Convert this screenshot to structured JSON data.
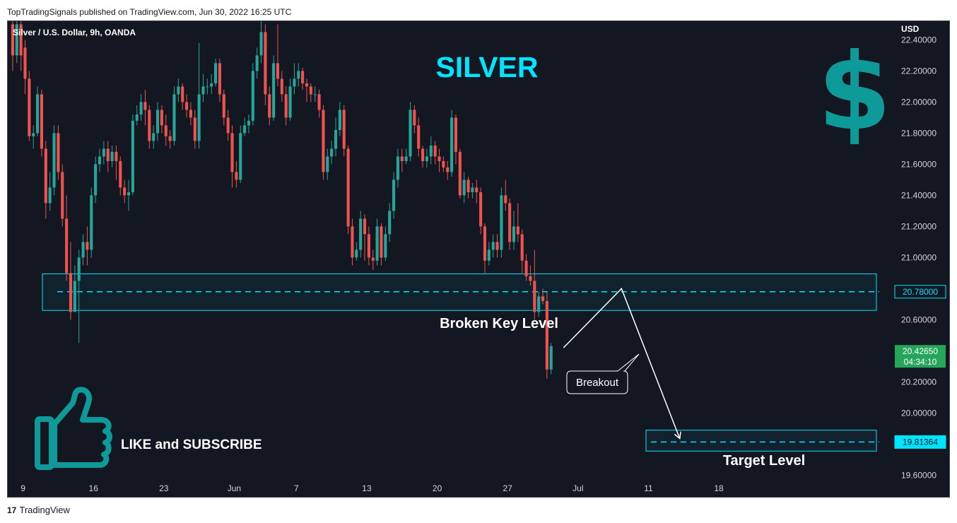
{
  "header": {
    "publish_text": "TopTradingSignals published on TradingView.com, Jun 30, 2022 16:25 UTC"
  },
  "footer": {
    "logo_text": "TradingView",
    "logo_icon": "tradingview-logo-icon"
  },
  "colors": {
    "background": "#131722",
    "up": "#26a69a",
    "down": "#ef5350",
    "accent": "#00e5ff",
    "icon": "#0f9a9a",
    "last_price_bg": "#26a65b"
  },
  "chart_data": {
    "type": "candlestick",
    "symbol_label": "Silver / U.S. Dollar, 9h, OANDA",
    "title": "SILVER",
    "currency_label": "USD",
    "y_ticks": [
      "22.40000",
      "22.20000",
      "22.00000",
      "21.80000",
      "21.60000",
      "21.40000",
      "21.20000",
      "21.00000",
      "20.60000",
      "20.20000",
      "20.00000",
      "19.60000"
    ],
    "ylim": [
      19.52,
      22.52
    ],
    "x_ticks": [
      {
        "label": "9",
        "bar": 2.5
      },
      {
        "label": "16",
        "bar": 19.5
      },
      {
        "label": "23",
        "bar": 36.5
      },
      {
        "label": "Jun",
        "bar": 53.5
      },
      {
        "label": "7",
        "bar": 68.5
      },
      {
        "label": "13",
        "bar": 85.5
      },
      {
        "label": "20",
        "bar": 102.5
      },
      {
        "label": "27",
        "bar": 119.5
      },
      {
        "label": "Jul",
        "bar": 136.5
      },
      {
        "label": "11",
        "bar": 153.5
      },
      {
        "label": "18",
        "bar": 170.5
      }
    ],
    "total_slots": 181,
    "candles": [
      [
        22.5,
        22.3,
        22.55,
        22.2
      ],
      [
        22.3,
        22.5,
        22.55,
        22.25
      ],
      [
        22.5,
        22.3,
        22.52,
        22.2
      ],
      [
        22.35,
        22.15,
        22.4,
        22.05
      ],
      [
        22.15,
        21.78,
        22.2,
        21.75
      ],
      [
        21.78,
        21.8,
        21.85,
        21.7
      ],
      [
        21.8,
        22.05,
        22.1,
        21.78
      ],
      [
        22.05,
        21.7,
        22.08,
        21.65
      ],
      [
        21.7,
        21.35,
        21.75,
        21.25
      ],
      [
        21.35,
        21.45,
        21.55,
        21.3
      ],
      [
        21.45,
        21.8,
        21.85,
        21.4
      ],
      [
        21.8,
        21.55,
        21.85,
        21.5
      ],
      [
        21.55,
        21.25,
        21.6,
        21.2
      ],
      [
        21.25,
        20.9,
        21.4,
        20.85
      ],
      [
        20.9,
        20.65,
        21.1,
        20.6
      ],
      [
        20.65,
        20.85,
        20.95,
        20.65
      ],
      [
        20.85,
        21.0,
        21.05,
        20.45
      ],
      [
        21.0,
        21.1,
        21.15,
        20.95
      ],
      [
        21.1,
        21.05,
        21.2,
        20.95
      ],
      [
        21.05,
        21.4,
        21.45,
        21.0
      ],
      [
        21.4,
        21.6,
        21.65,
        21.35
      ],
      [
        21.6,
        21.65,
        21.7,
        21.55
      ],
      [
        21.65,
        21.7,
        21.75,
        21.6
      ],
      [
        21.7,
        21.62,
        21.75,
        21.55
      ],
      [
        21.62,
        21.68,
        21.72,
        21.58
      ],
      [
        21.68,
        21.62,
        21.72,
        21.5
      ],
      [
        21.62,
        21.45,
        21.65,
        21.4
      ],
      [
        21.45,
        21.4,
        21.5,
        21.35
      ],
      [
        21.4,
        21.42,
        21.5,
        21.3
      ],
      [
        21.42,
        21.88,
        21.92,
        21.4
      ],
      [
        21.88,
        21.92,
        21.98,
        21.85
      ],
      [
        21.92,
        22.0,
        22.05,
        21.88
      ],
      [
        22.0,
        21.95,
        22.08,
        21.85
      ],
      [
        21.95,
        21.75,
        21.98,
        21.7
      ],
      [
        21.75,
        21.8,
        21.85,
        21.7
      ],
      [
        21.8,
        21.95,
        22.0,
        21.75
      ],
      [
        21.95,
        21.85,
        21.98,
        21.8
      ],
      [
        21.85,
        21.78,
        21.92,
        21.72
      ],
      [
        21.78,
        21.75,
        21.82,
        21.7
      ],
      [
        21.75,
        22.05,
        22.1,
        21.72
      ],
      [
        22.05,
        22.1,
        22.15,
        22.0
      ],
      [
        22.1,
        22.0,
        22.12,
        21.95
      ],
      [
        22.0,
        21.95,
        22.05,
        21.9
      ],
      [
        21.95,
        21.9,
        22.0,
        21.85
      ],
      [
        21.9,
        21.75,
        21.95,
        21.7
      ],
      [
        21.75,
        22.05,
        22.38,
        21.7
      ],
      [
        22.05,
        22.1,
        22.18,
        22.0
      ],
      [
        22.1,
        22.1,
        22.15,
        22.05
      ],
      [
        22.1,
        22.12,
        22.18,
        22.05
      ],
      [
        22.12,
        22.25,
        22.28,
        22.1
      ],
      [
        22.25,
        22.05,
        22.28,
        22.0
      ],
      [
        22.05,
        21.9,
        22.08,
        21.85
      ],
      [
        21.9,
        21.8,
        21.95,
        21.75
      ],
      [
        21.8,
        21.55,
        21.85,
        21.45
      ],
      [
        21.55,
        21.5,
        21.62,
        21.45
      ],
      [
        21.5,
        21.8,
        21.85,
        21.48
      ],
      [
        21.8,
        21.85,
        21.9,
        21.78
      ],
      [
        21.85,
        21.88,
        21.92,
        21.8
      ],
      [
        21.88,
        22.2,
        22.25,
        21.85
      ],
      [
        22.2,
        22.3,
        22.35,
        22.15
      ],
      [
        22.3,
        22.45,
        22.55,
        22.25
      ],
      [
        22.45,
        22.05,
        22.5,
        21.98
      ],
      [
        22.05,
        21.9,
        22.1,
        21.85
      ],
      [
        21.9,
        22.25,
        22.3,
        21.88
      ],
      [
        22.25,
        22.15,
        22.5,
        22.1
      ],
      [
        22.15,
        22.05,
        22.2,
        22.0
      ],
      [
        22.05,
        21.9,
        22.1,
        21.85
      ],
      [
        21.9,
        22.1,
        22.15,
        21.88
      ],
      [
        22.1,
        22.15,
        22.25,
        22.05
      ],
      [
        22.15,
        22.2,
        22.25,
        22.1
      ],
      [
        22.2,
        22.12,
        22.22,
        22.08
      ],
      [
        22.12,
        22.1,
        22.15,
        22.0
      ],
      [
        22.1,
        22.05,
        22.12,
        22.0
      ],
      [
        22.05,
        22.05,
        22.1,
        22.0
      ],
      [
        22.05,
        21.95,
        22.08,
        21.9
      ],
      [
        21.95,
        21.55,
        21.98,
        21.5
      ],
      [
        21.55,
        21.65,
        21.7,
        21.5
      ],
      [
        21.65,
        21.7,
        21.75,
        21.6
      ],
      [
        21.7,
        21.82,
        21.9,
        21.65
      ],
      [
        21.82,
        21.95,
        22.0,
        21.78
      ],
      [
        21.95,
        21.7,
        21.98,
        21.65
      ],
      [
        21.7,
        21.2,
        21.72,
        21.15
      ],
      [
        21.2,
        21.0,
        21.25,
        20.95
      ],
      [
        21.0,
        21.05,
        21.1,
        20.98
      ],
      [
        21.05,
        21.25,
        21.3,
        21.0
      ],
      [
        21.25,
        21.15,
        21.28,
        20.98
      ],
      [
        21.15,
        21.0,
        21.2,
        20.95
      ],
      [
        21.0,
        20.98,
        21.05,
        20.92
      ],
      [
        20.98,
        21.2,
        21.25,
        20.95
      ],
      [
        21.2,
        21.0,
        21.22,
        20.95
      ],
      [
        21.0,
        21.15,
        21.2,
        20.98
      ],
      [
        21.15,
        21.3,
        21.35,
        21.1
      ],
      [
        21.3,
        21.5,
        21.55,
        21.25
      ],
      [
        21.5,
        21.65,
        21.7,
        21.45
      ],
      [
        21.65,
        21.62,
        21.7,
        21.55
      ],
      [
        21.62,
        21.65,
        21.7,
        21.6
      ],
      [
        21.65,
        21.95,
        22.0,
        21.62
      ],
      [
        21.95,
        21.85,
        21.98,
        21.8
      ],
      [
        21.85,
        21.7,
        21.9,
        21.65
      ],
      [
        21.7,
        21.62,
        21.72,
        21.58
      ],
      [
        21.62,
        21.65,
        21.7,
        21.58
      ],
      [
        21.65,
        21.72,
        21.78,
        21.6
      ],
      [
        21.72,
        21.65,
        21.75,
        21.6
      ],
      [
        21.65,
        21.62,
        21.7,
        21.55
      ],
      [
        21.62,
        21.58,
        21.65,
        21.55
      ],
      [
        21.58,
        21.55,
        21.62,
        21.5
      ],
      [
        21.55,
        21.9,
        21.95,
        21.52
      ],
      [
        21.9,
        21.68,
        21.92,
        21.6
      ],
      [
        21.68,
        21.4,
        21.7,
        21.38
      ],
      [
        21.4,
        21.5,
        21.55,
        21.35
      ],
      [
        21.5,
        21.42,
        21.52,
        21.38
      ],
      [
        21.42,
        21.45,
        21.48,
        21.38
      ],
      [
        21.45,
        21.42,
        21.5,
        21.35
      ],
      [
        21.42,
        21.2,
        21.45,
        21.15
      ],
      [
        21.2,
        20.98,
        21.22,
        20.9
      ],
      [
        20.98,
        21.05,
        21.1,
        20.95
      ],
      [
        21.05,
        21.1,
        21.15,
        21.0
      ],
      [
        21.1,
        21.05,
        21.15,
        21.0
      ],
      [
        21.05,
        21.4,
        21.45,
        21.0
      ],
      [
        21.4,
        21.35,
        21.5,
        21.3
      ],
      [
        21.35,
        21.1,
        21.38,
        21.05
      ],
      [
        21.1,
        21.2,
        21.3,
        21.05
      ],
      [
        21.2,
        21.15,
        21.35,
        21.1
      ],
      [
        21.15,
        20.98,
        21.18,
        20.9
      ],
      [
        20.98,
        20.88,
        21.02,
        20.85
      ],
      [
        20.88,
        20.85,
        20.95,
        20.82
      ],
      [
        20.85,
        20.65,
        21.05,
        20.6
      ],
      [
        20.65,
        20.75,
        20.78,
        20.62
      ],
      [
        20.75,
        20.72,
        20.8,
        20.7
      ],
      [
        20.72,
        20.28,
        20.78,
        20.22
      ],
      [
        20.28,
        20.43,
        20.45,
        20.25
      ]
    ],
    "zone_key": {
      "top": 20.895,
      "bottom": 20.66,
      "level": 20.78,
      "label": "Broken Key Level"
    },
    "zone_target": {
      "top": 19.89,
      "bottom": 19.755,
      "level": 19.81364,
      "label": "Target Level"
    },
    "price_labels": {
      "key_level": "20.78000",
      "target_level": "19.81364",
      "last_price": "20.42650",
      "countdown": "04:34:10"
    },
    "projection_path": [
      [
        133,
        20.42
      ],
      [
        147,
        20.8
      ],
      [
        161,
        19.84
      ]
    ],
    "annotation_breakout": "Breakout",
    "like_text": "LIKE and SUBSCRIBE",
    "icons": [
      "dollar-sign-icon",
      "thumbs-up-icon"
    ]
  }
}
